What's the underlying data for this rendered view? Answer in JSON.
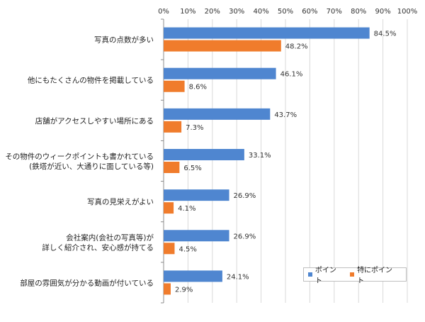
{
  "chart_data": {
    "type": "bar",
    "orientation": "horizontal",
    "title": "",
    "xlabel": "",
    "ylabel": "",
    "xlim": [
      0,
      100
    ],
    "tick_unit": "%",
    "ticks": [
      "0%",
      "10%",
      "20%",
      "30%",
      "40%",
      "50%",
      "60%",
      "70%",
      "80%",
      "90%",
      "100%"
    ],
    "categories": [
      [
        "写真の点数が多い"
      ],
      [
        "他にもたくさんの物件を掲載している"
      ],
      [
        "店舗がアクセスしやすい場所にある"
      ],
      [
        "その物件のウィークポイントも書かれている",
        "(鉄塔が近い、大通りに面している等)"
      ],
      [
        "写真の見栄えがよい"
      ],
      [
        "会社案内(会社の写真等)が",
        "詳しく紹介され、安心感が持てる"
      ],
      [
        "部屋の雰囲気が分かる動画が付いている"
      ]
    ],
    "series": [
      {
        "name": "ポイント",
        "color": "#4f86d0",
        "values": [
          84.5,
          46.1,
          43.7,
          33.1,
          26.9,
          26.9,
          24.1
        ],
        "labels": [
          "84.5%",
          "46.1%",
          "43.7%",
          "33.1%",
          "26.9%",
          "26.9%",
          "24.1%"
        ]
      },
      {
        "name": "特にポイント",
        "color": "#f07c2c",
        "values": [
          48.2,
          8.6,
          7.3,
          6.5,
          4.1,
          4.5,
          2.9
        ],
        "labels": [
          "48.2%",
          "8.6%",
          "7.3%",
          "6.5%",
          "4.1%",
          "4.5%",
          "2.9%"
        ]
      }
    ],
    "grid": true,
    "legend_position": "bottom-right"
  }
}
